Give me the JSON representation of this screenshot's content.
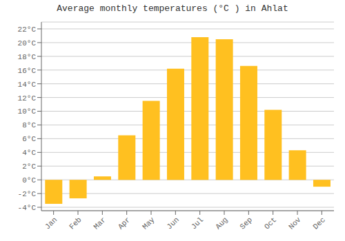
{
  "chart_data": {
    "type": "bar",
    "title": "Average monthly temperatures (°C ) in Ahlat",
    "categories": [
      "Jan",
      "Feb",
      "Mar",
      "Apr",
      "May",
      "Jun",
      "Jul",
      "Aug",
      "Sep",
      "Oct",
      "Nov",
      "Dec"
    ],
    "values": [
      -3.5,
      -2.7,
      0.5,
      6.5,
      11.5,
      16.2,
      20.8,
      20.5,
      16.6,
      10.2,
      4.3,
      -1.0
    ],
    "color": "#FFC020",
    "ylim": [
      -4.5,
      23
    ],
    "yticks": [
      {
        "value": -4,
        "label": "-4°C"
      },
      {
        "value": -2,
        "label": "-2°C"
      },
      {
        "value": 0,
        "label": "0°C"
      },
      {
        "value": 2,
        "label": "2°C"
      },
      {
        "value": 4,
        "label": "4°C"
      },
      {
        "value": 6,
        "label": "6°C"
      },
      {
        "value": 8,
        "label": "8°C"
      },
      {
        "value": 10,
        "label": "10°C"
      },
      {
        "value": 12,
        "label": "12°C"
      },
      {
        "value": 14,
        "label": "14°C"
      },
      {
        "value": 16,
        "label": "16°C"
      },
      {
        "value": 18,
        "label": "18°C"
      },
      {
        "value": 20,
        "label": "20°C"
      },
      {
        "value": 22,
        "label": "22°C"
      }
    ],
    "grid": true
  }
}
